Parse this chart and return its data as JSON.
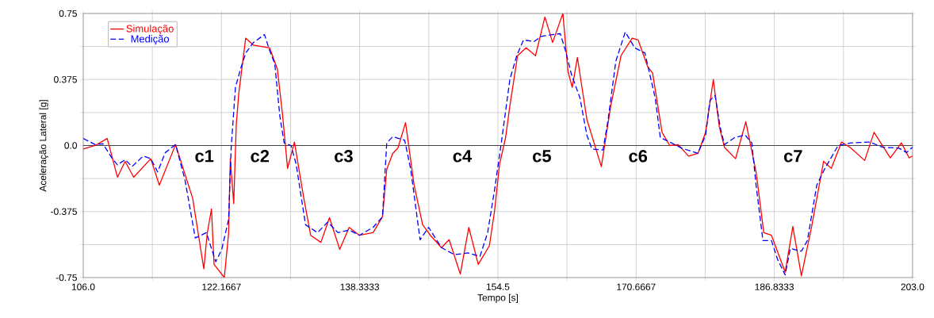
{
  "chart_data": {
    "type": "line",
    "xlabel": "Tempo [s]",
    "ylabel": "Aceleração Lateral [g]",
    "xlim": [
      106,
      203
    ],
    "ylim": [
      -0.75,
      0.75
    ],
    "xticks": [
      {
        "value": 106,
        "label": "106.0"
      },
      {
        "value": 114.0833,
        "label": null
      },
      122.1667,
      {
        "value": 130.25,
        "label": null
      },
      138.3333,
      {
        "value": 146.4167,
        "label": null
      },
      154.5,
      {
        "value": 162.5833,
        "label": null
      },
      170.6667,
      {
        "value": 178.75,
        "label": null
      },
      186.8333,
      {
        "value": 194.9167,
        "label": null
      },
      {
        "value": 203,
        "label": "203.0"
      }
    ],
    "yticks": [
      -0.75,
      {
        "value": -0.5625,
        "label": null
      },
      -0.375,
      {
        "value": -0.1875,
        "label": null
      },
      {
        "value": 0,
        "label": "0.0"
      },
      {
        "value": 0.1875,
        "label": null
      },
      0.375,
      {
        "value": 0.5625,
        "label": null
      },
      0.75
    ],
    "grid": true,
    "legend": "top left",
    "marker": "none",
    "ref_lines": [
      {
        "axis": "y",
        "value": 0,
        "color": "#404040"
      }
    ],
    "series": [
      {
        "name": "Simulação",
        "color": "#ff0000",
        "line_style": "solid",
        "x": [
          106,
          107.4,
          108.8,
          110.0,
          110.9,
          111.9,
          113.9,
          114.9,
          116.8,
          118.8,
          120.1,
          120.5,
          121.0,
          121.3,
          122.5,
          123.0,
          123.2,
          123.6,
          123.9,
          124.2,
          125.0,
          125.9,
          127.8,
          128.7,
          129.3,
          129.9,
          130.7,
          131.8,
          132.6,
          133.8,
          134.8,
          136.0,
          137.1,
          138.3,
          139.9,
          141.0,
          141.5,
          142.2,
          142.8,
          143.7,
          144.7,
          145.7,
          146.6,
          147.9,
          148.8,
          150.1,
          151.1,
          152.2,
          153.5,
          154.1,
          154.7,
          155.4,
          155.9,
          156.8,
          157.8,
          158.9,
          160.0,
          160.9,
          162.1,
          162.7,
          163.2,
          163.8,
          164.9,
          166.6,
          167.7,
          168.9,
          170.2,
          170.9,
          172.0,
          172.6,
          173.7,
          174.6,
          175.6,
          176.8,
          177.9,
          178.8,
          179.7,
          180.4,
          181.0,
          182.3,
          183.5,
          184.7,
          185.6,
          186.5,
          188.1,
          189.0,
          190.0,
          191.2,
          192.6,
          193.5,
          194.7,
          195.8,
          197.4,
          198.5,
          200.4,
          201.7,
          202.6,
          203
        ],
        "values": [
          -0.02,
          0,
          0.04,
          -0.18,
          -0.09,
          -0.18,
          -0.075,
          -0.225,
          0.005,
          -0.3,
          -0.7,
          -0.5,
          -0.36,
          -0.675,
          -0.75,
          -0.5,
          -0.075,
          -0.33,
          0.12,
          0.3,
          0.61,
          0.57,
          0.555,
          0.435,
          0.18,
          -0.13,
          0.02,
          -0.3,
          -0.51,
          -0.55,
          -0.41,
          -0.59,
          -0.465,
          -0.51,
          -0.495,
          -0.405,
          -0.135,
          -0.045,
          -0.015,
          0.13,
          -0.225,
          -0.45,
          -0.51,
          -0.58,
          -0.535,
          -0.73,
          -0.465,
          -0.675,
          -0.57,
          -0.375,
          -0.105,
          0.045,
          0.225,
          0.51,
          0.555,
          0.51,
          0.73,
          0.585,
          0.75,
          0.42,
          0.33,
          0.5,
          0.15,
          -0.12,
          0.225,
          0.51,
          0.61,
          0.6,
          0.45,
          0.41,
          0.075,
          0,
          0.005,
          -0.06,
          -0.045,
          0.075,
          0.375,
          0.105,
          -0.01,
          -0.075,
          0.135,
          -0.15,
          -0.495,
          -0.51,
          -0.72,
          -0.46,
          -0.74,
          -0.46,
          -0.09,
          -0.13,
          0.02,
          -0.015,
          -0.085,
          0.075,
          -0.07,
          0.015,
          -0.07,
          -0.06
        ]
      },
      {
        "name": "Medição",
        "color": "#0000ff",
        "line_style": "dashed",
        "x": [
          106,
          107.4,
          108.3,
          109.4,
          110.0,
          110.9,
          111.7,
          113.0,
          113.9,
          114.7,
          115.6,
          116.8,
          117.9,
          119.1,
          120.4,
          121.5,
          122.2,
          123.0,
          123.3,
          123.8,
          124.4,
          125.0,
          125.9,
          127.2,
          127.8,
          128.4,
          129.0,
          129.5,
          130.3,
          130.9,
          132.0,
          133.4,
          134.6,
          135.8,
          137.1,
          138.3,
          139.9,
          141.0,
          141.5,
          142.2,
          143.6,
          144.3,
          145.4,
          146.4,
          147.9,
          149.4,
          151.0,
          152.4,
          153.3,
          154.1,
          154.9,
          155.9,
          156.7,
          157.5,
          158.7,
          159.6,
          160.9,
          161.8,
          162.4,
          163.1,
          164.1,
          164.9,
          165.5,
          166.8,
          167.4,
          168.3,
          169.4,
          170.5,
          171.7,
          172.9,
          173.5,
          174.8,
          176.0,
          177.9,
          178.8,
          179.3,
          179.9,
          180.5,
          181.0,
          182.2,
          183.4,
          184.2,
          184.7,
          185.5,
          186.5,
          187.2,
          188.1,
          188.7,
          190.0,
          190.7,
          191.8,
          192.7,
          194.3,
          195.8,
          198.0,
          199.5,
          201.4,
          202.3,
          203
        ],
        "values": [
          0.04,
          0.005,
          0.01,
          -0.075,
          -0.11,
          -0.08,
          -0.12,
          -0.06,
          -0.075,
          -0.15,
          -0.04,
          0.005,
          -0.195,
          -0.525,
          -0.495,
          -0.66,
          -0.59,
          -0.42,
          -0.015,
          0.33,
          0.435,
          0.525,
          0.585,
          0.63,
          0.54,
          0.465,
          0.165,
          0.015,
          0,
          -0.105,
          -0.45,
          -0.495,
          -0.435,
          -0.495,
          -0.48,
          -0.51,
          -0.465,
          -0.405,
          0.015,
          0.05,
          0.03,
          -0.135,
          -0.535,
          -0.465,
          -0.58,
          -0.62,
          -0.61,
          -0.63,
          -0.495,
          -0.255,
          0.015,
          0.375,
          0.51,
          0.6,
          0.59,
          0.62,
          0.63,
          0.635,
          0.54,
          0.405,
          0.27,
          0.06,
          -0.02,
          -0.025,
          0.15,
          0.48,
          0.645,
          0.555,
          0.525,
          0.27,
          0.045,
          0.015,
          -0.015,
          -0.045,
          0.06,
          0.255,
          0.285,
          0.105,
          0.005,
          0.045,
          0.06,
          0.015,
          -0.225,
          -0.54,
          -0.54,
          -0.645,
          -0.735,
          -0.585,
          -0.6,
          -0.54,
          -0.225,
          -0.135,
          0,
          0.015,
          0.02,
          -0.01,
          -0.015,
          -0.04,
          -0.01
        ]
      }
    ],
    "annotations": [
      "c1",
      "c2",
      "c3",
      "c4",
      "c5",
      "c6",
      "c7"
    ]
  }
}
